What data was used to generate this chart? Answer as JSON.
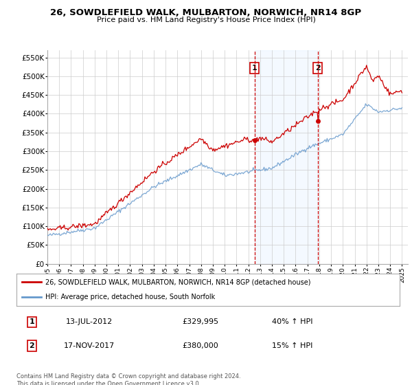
{
  "title": "26, SOWDLEFIELD WALK, MULBARTON, NORWICH, NR14 8GP",
  "subtitle": "Price paid vs. HM Land Registry's House Price Index (HPI)",
  "ylabel_ticks": [
    "£0",
    "£50K",
    "£100K",
    "£150K",
    "£200K",
    "£250K",
    "£300K",
    "£350K",
    "£400K",
    "£450K",
    "£500K",
    "£550K"
  ],
  "ytick_values": [
    0,
    50000,
    100000,
    150000,
    200000,
    250000,
    300000,
    350000,
    400000,
    450000,
    500000,
    550000
  ],
  "xlim_start": 1995.0,
  "xlim_end": 2025.5,
  "ylim_bottom": 0,
  "ylim_top": 570000,
  "sale1_date": 2012.53,
  "sale1_price": 329995,
  "sale1_label": "1",
  "sale1_text": "13-JUL-2012",
  "sale1_price_text": "£329,995",
  "sale1_hpi_text": "40% ↑ HPI",
  "sale2_date": 2017.88,
  "sale2_price": 380000,
  "sale2_label": "2",
  "sale2_text": "17-NOV-2017",
  "sale2_price_text": "£380,000",
  "sale2_hpi_text": "15% ↑ HPI",
  "legend_line1": "26, SOWDLEFIELD WALK, MULBARTON, NORWICH, NR14 8GP (detached house)",
  "legend_line2": "HPI: Average price, detached house, South Norfolk",
  "footer": "Contains HM Land Registry data © Crown copyright and database right 2024.\nThis data is licensed under the Open Government Licence v3.0.",
  "hpi_color": "#6699cc",
  "price_color": "#cc0000",
  "background_color": "#ffffff",
  "plot_bg_color": "#ffffff",
  "shaded_region_color": "#ddeeff",
  "grid_color": "#cccccc"
}
